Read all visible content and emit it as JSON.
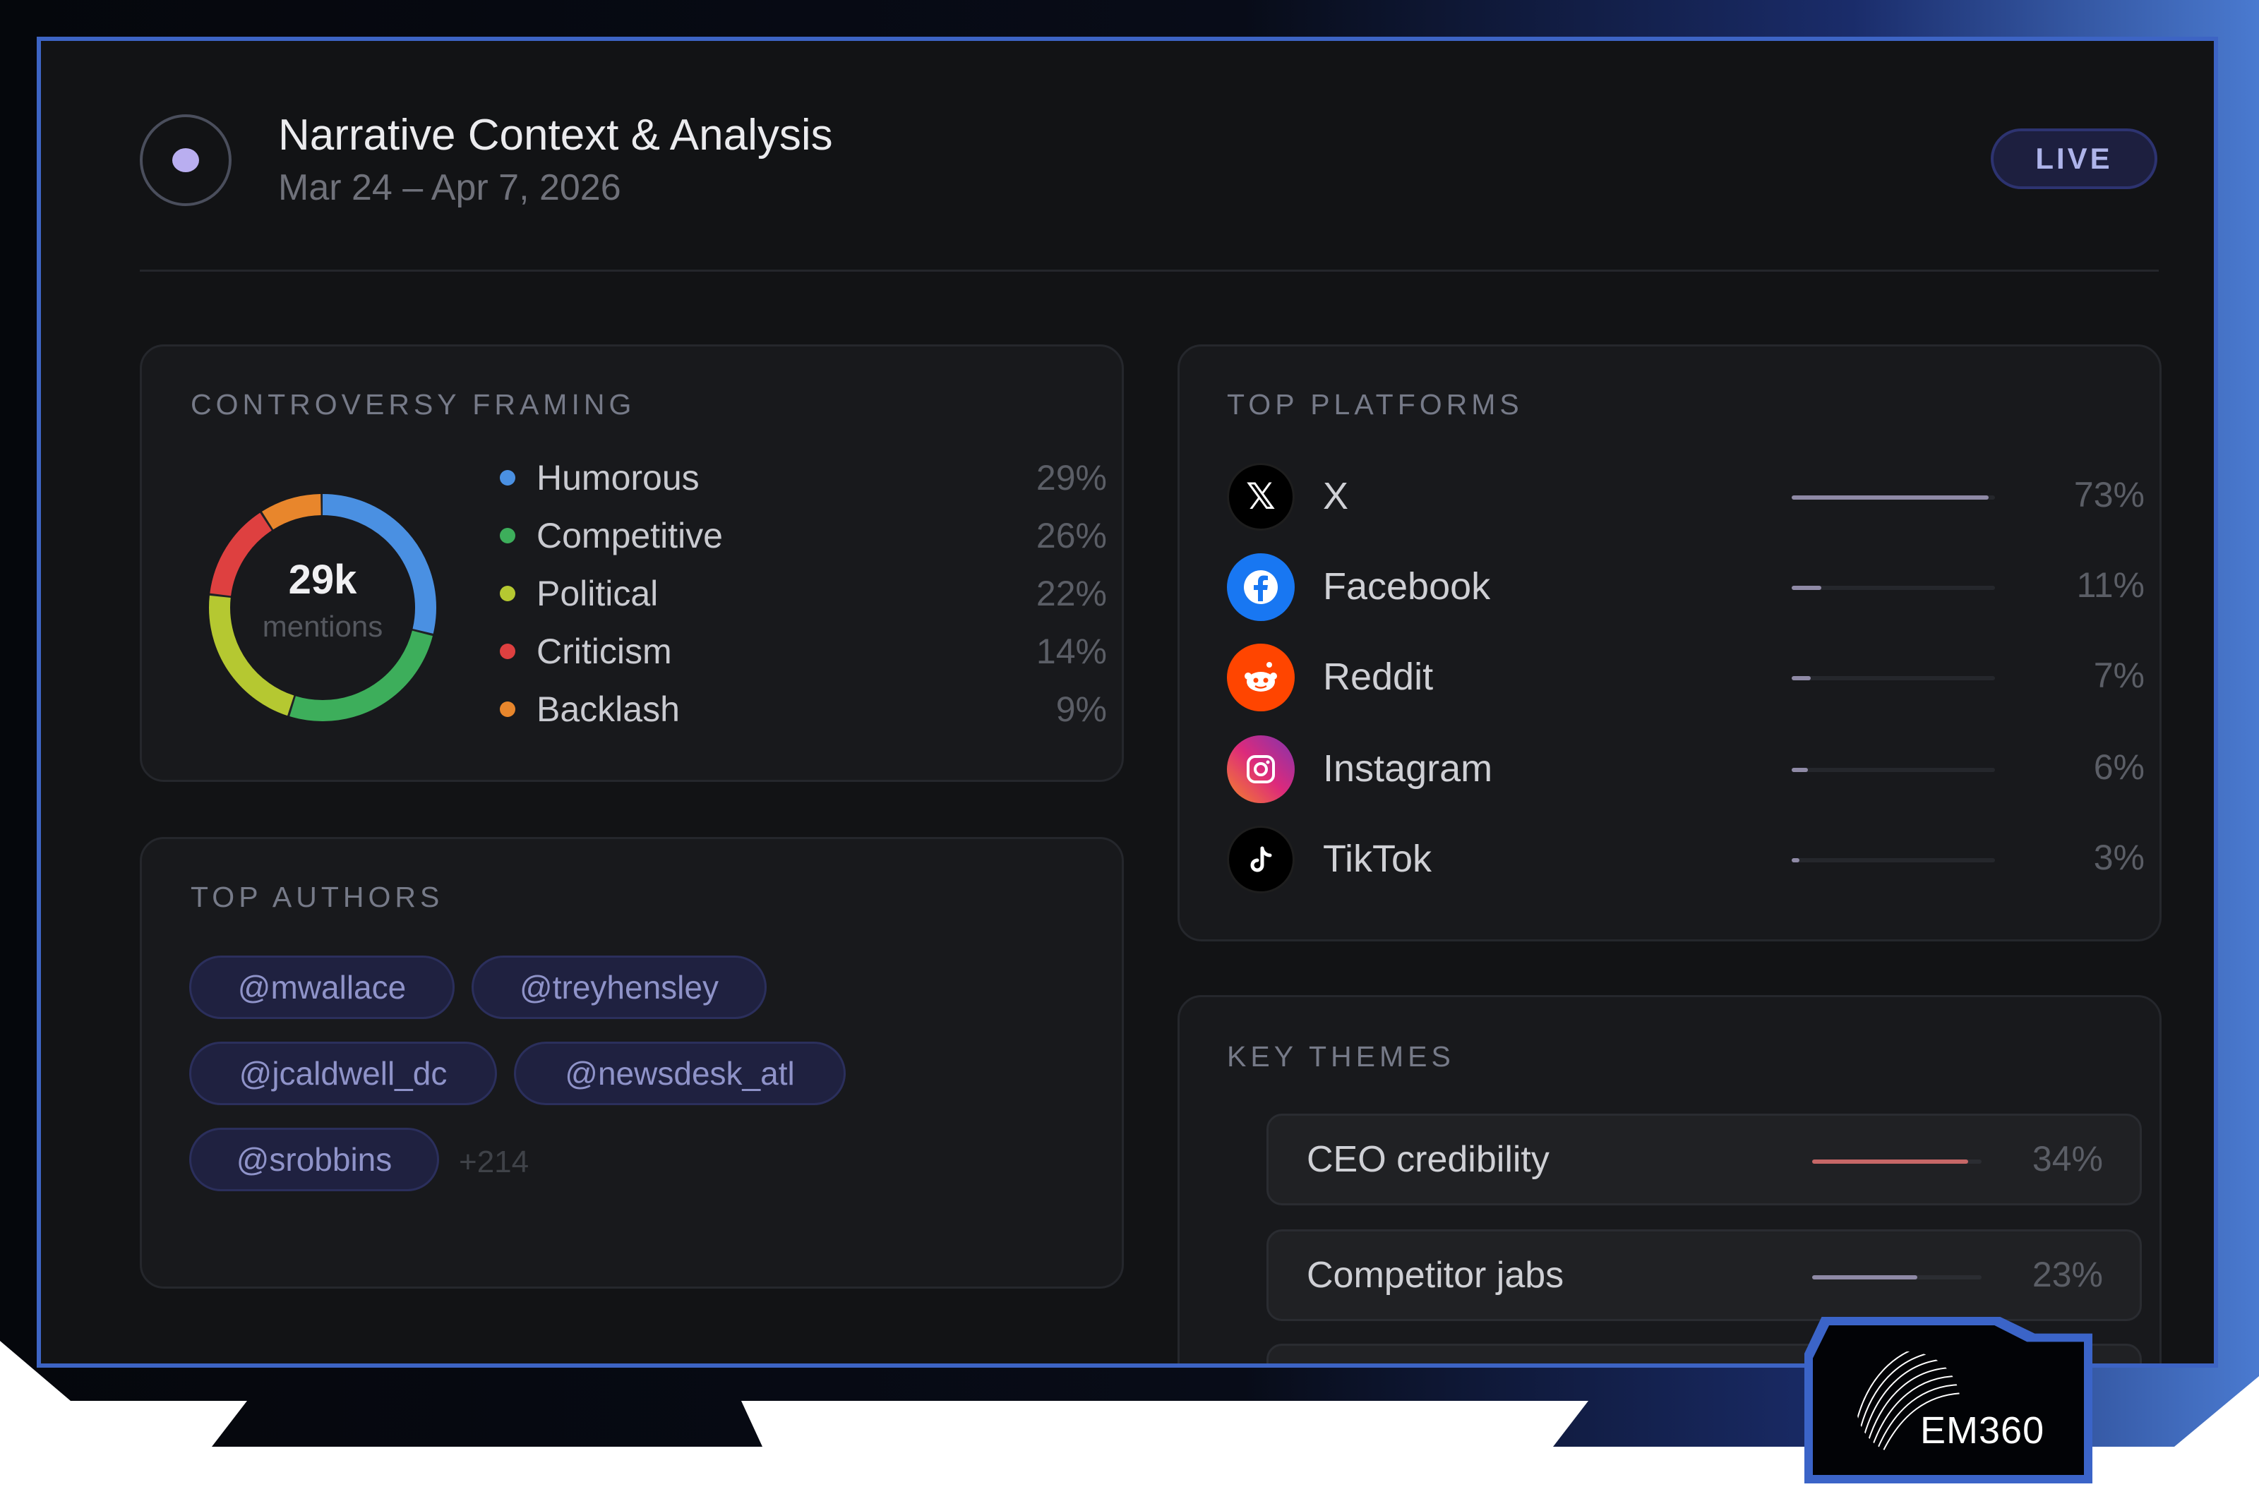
{
  "header": {
    "title": "Narrative Context & Analysis",
    "date_range": "Mar 24 – Apr 7, 2026",
    "status_badge": "LIVE"
  },
  "controversy_framing": {
    "label": "CONTROVERSY FRAMING",
    "total_value": "29k",
    "total_unit": "mentions",
    "items": [
      {
        "label": "Humorous",
        "pct": "29%",
        "value": 29,
        "color": "#4a90e2"
      },
      {
        "label": "Competitive",
        "pct": "26%",
        "value": 26,
        "color": "#3dae5b"
      },
      {
        "label": "Political",
        "pct": "22%",
        "value": 22,
        "color": "#b5c831"
      },
      {
        "label": "Criticism",
        "pct": "14%",
        "value": 14,
        "color": "#de4040"
      },
      {
        "label": "Backlash",
        "pct": "9%",
        "value": 9,
        "color": "#e8862c"
      }
    ]
  },
  "top_authors": {
    "label": "TOP AUTHORS",
    "authors": [
      "@mwallace",
      "@treyhensley",
      "@jcaldwell_dc",
      "@newsdesk_atl",
      "@srobbins"
    ],
    "more": "+214"
  },
  "top_platforms": {
    "label": "TOP PLATFORMS",
    "items": [
      {
        "name": "X",
        "pct": "73%",
        "value": 73,
        "icon": "x-logo-icon",
        "color": "#000000"
      },
      {
        "name": "Facebook",
        "pct": "11%",
        "value": 11,
        "icon": "facebook-icon",
        "color": "#1877f2"
      },
      {
        "name": "Reddit",
        "pct": "7%",
        "value": 7,
        "icon": "reddit-icon",
        "color": "#ff4500"
      },
      {
        "name": "Instagram",
        "pct": "6%",
        "value": 6,
        "icon": "instagram-icon",
        "color": "#d62976"
      },
      {
        "name": "TikTok",
        "pct": "3%",
        "value": 3,
        "icon": "tiktok-icon",
        "color": "#000000"
      }
    ]
  },
  "key_themes": {
    "label": "KEY THEMES",
    "items": [
      {
        "name": "CEO credibility",
        "pct": "34%",
        "value": 34,
        "color": "#c66767"
      },
      {
        "name": "Competitor jabs",
        "pct": "23%",
        "value": 23,
        "color": "#8f8aa6"
      }
    ]
  },
  "branding": {
    "logo_text": "EM360"
  }
}
